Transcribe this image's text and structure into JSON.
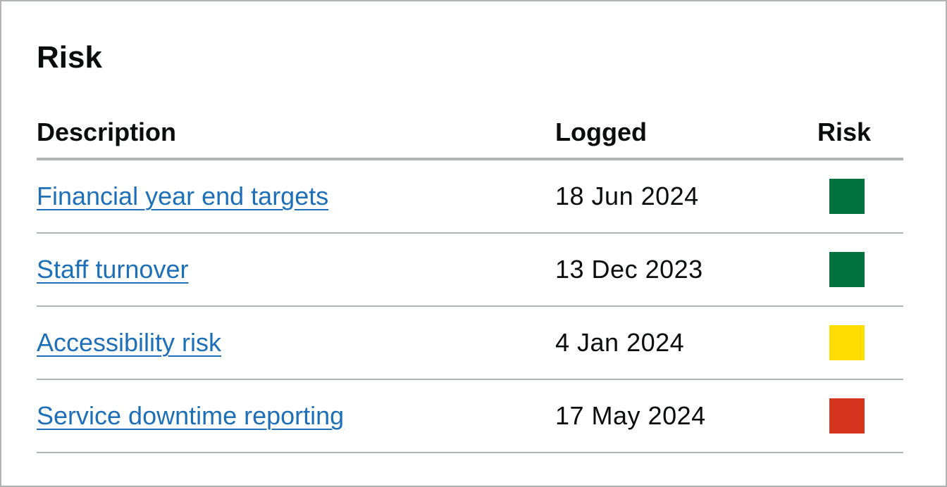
{
  "title": "Risk",
  "table": {
    "headers": {
      "description": "Description",
      "logged": "Logged",
      "risk": "Risk"
    },
    "rows": [
      {
        "description": "Financial year end targets",
        "logged": "18 Jun 2024",
        "risk_color": "#00703c",
        "risk_level": "green"
      },
      {
        "description": "Staff turnover",
        "logged": "13 Dec 2023",
        "risk_color": "#00703c",
        "risk_level": "green"
      },
      {
        "description": "Accessibility risk",
        "logged": "4 Jan 2024",
        "risk_color": "#ffdd00",
        "risk_level": "amber"
      },
      {
        "description": "Service downtime reporting",
        "logged": "17 May 2024",
        "risk_color": "#d4351c",
        "risk_level": "red"
      }
    ]
  },
  "colors": {
    "link": "#1d70b8",
    "text": "#0b0c0c",
    "border": "#b1b4b6"
  }
}
